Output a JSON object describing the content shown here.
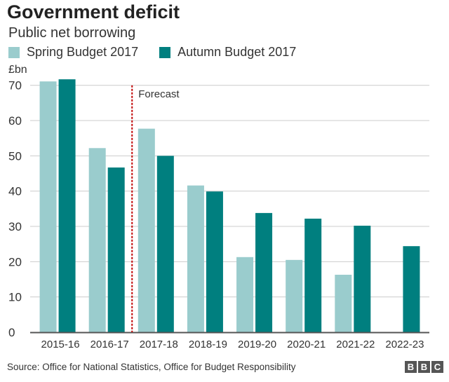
{
  "chart_data": {
    "type": "bar",
    "title": "Government deficit",
    "subtitle": "Public net borrowing",
    "ylabel": "£bn",
    "xlabel": "",
    "categories": [
      "2015-16",
      "2016-17",
      "2017-18",
      "2018-19",
      "2019-20",
      "2020-21",
      "2021-22",
      "2022-23"
    ],
    "series": [
      {
        "name": "Spring Budget 2017",
        "color": "#9acccd",
        "values": [
          71.1,
          52.2,
          57.7,
          41.6,
          21.3,
          20.5,
          16.3,
          null
        ]
      },
      {
        "name": "Autumn Budget 2017",
        "color": "#007f7f",
        "values": [
          71.7,
          46.7,
          50.0,
          39.9,
          33.8,
          32.2,
          30.2,
          24.4
        ]
      }
    ],
    "ylim": [
      0,
      70
    ],
    "yticks": [
      0,
      10,
      20,
      30,
      40,
      50,
      60,
      70
    ],
    "grid": true,
    "legend": "top-left",
    "annotation": {
      "label": "Forecast",
      "after_category": "2016-17",
      "color": "#c00000"
    }
  },
  "source": "Source: Office for National Statistics, Office for Budget Responsibility",
  "logo": "BBC"
}
